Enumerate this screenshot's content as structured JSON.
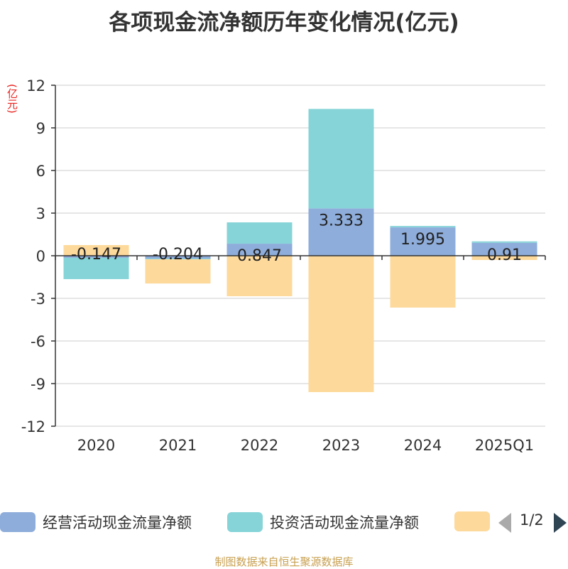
{
  "chart_data": {
    "type": "bar",
    "stacked": true,
    "title": "各项现金流净额历年变化情况(亿元)",
    "unit_label": "(亿元)",
    "categories": [
      "2020",
      "2021",
      "2022",
      "2023",
      "2024",
      "2025Q1"
    ],
    "ylim": [
      -12,
      12
    ],
    "yticks": [
      12,
      9,
      6,
      3,
      0,
      -3,
      -6,
      -9,
      -12
    ],
    "grid": true,
    "legend_position": "bottom",
    "series": [
      {
        "name": "经营活动现金流量净额",
        "color": "#8eaddb",
        "values": [
          -0.147,
          -0.204,
          0.847,
          3.333,
          1.995,
          0.91
        ],
        "labels": [
          "-0.147",
          "-0.204",
          "0.847",
          "3.333",
          "1.995",
          "0.91"
        ]
      },
      {
        "name": "投资活动现金流量净额",
        "color": "#86d4d8",
        "values": [
          -1.5,
          -0.05,
          1.5,
          7.0,
          0.1,
          0.1
        ]
      },
      {
        "name": "",
        "color": "#fdd99b",
        "values": [
          0.75,
          -1.7,
          -2.85,
          -9.6,
          -3.65,
          -0.3
        ]
      }
    ]
  },
  "legend": {
    "page_indicator": "1/2"
  },
  "footer": "制图数据来自恒生聚源数据库"
}
